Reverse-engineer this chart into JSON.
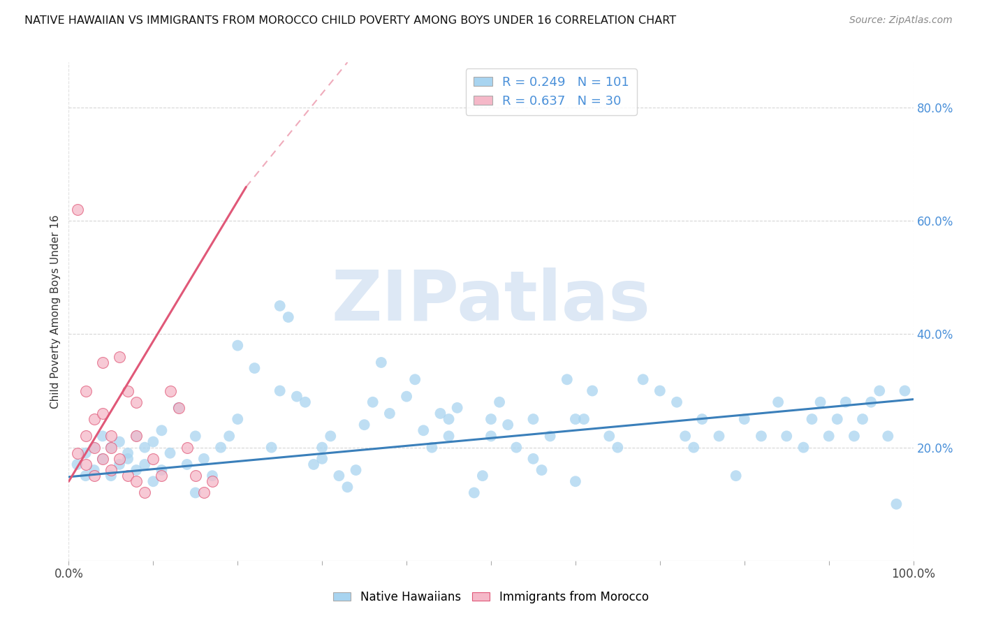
{
  "title": "NATIVE HAWAIIAN VS IMMIGRANTS FROM MOROCCO CHILD POVERTY AMONG BOYS UNDER 16 CORRELATION CHART",
  "source": "Source: ZipAtlas.com",
  "ylabel": "Child Poverty Among Boys Under 16",
  "xlim": [
    0.0,
    1.0
  ],
  "ylim": [
    0.0,
    0.88
  ],
  "blue_color": "#a8d4f0",
  "blue_line_color": "#3a7fba",
  "pink_color": "#f5b8c8",
  "pink_line_color": "#e05878",
  "watermark": "ZIPatlas",
  "background_color": "#ffffff",
  "grid_color": "#cccccc",
  "blue_R": 0.249,
  "pink_R": 0.637,
  "blue_N": 101,
  "pink_N": 30,
  "blue_line_x0": 0.0,
  "blue_line_y0": 0.148,
  "blue_line_x1": 1.0,
  "blue_line_y1": 0.285,
  "pink_line_x0": 0.0,
  "pink_line_y0": 0.14,
  "pink_line_x1": 0.21,
  "pink_line_y1": 0.66,
  "pink_line_dash_x0": 0.0,
  "pink_line_dash_y0": 0.14,
  "pink_line_dash_x1": 0.33,
  "pink_line_dash_y1": 0.88,
  "xtick_positions": [
    0.0,
    0.1,
    0.2,
    0.3,
    0.4,
    0.5,
    0.6,
    0.7,
    0.8,
    0.9,
    1.0
  ],
  "ytick_right": [
    0.2,
    0.4,
    0.6,
    0.8
  ],
  "ytick_right_labels": [
    "20.0%",
    "40.0%",
    "60.0%",
    "80.0%"
  ],
  "blue_scatter_x": [
    0.01,
    0.02,
    0.02,
    0.03,
    0.03,
    0.04,
    0.04,
    0.05,
    0.05,
    0.06,
    0.06,
    0.07,
    0.07,
    0.08,
    0.08,
    0.09,
    0.09,
    0.1,
    0.1,
    0.11,
    0.11,
    0.12,
    0.13,
    0.14,
    0.15,
    0.16,
    0.17,
    0.18,
    0.19,
    0.2,
    0.22,
    0.24,
    0.25,
    0.26,
    0.27,
    0.28,
    0.29,
    0.3,
    0.31,
    0.32,
    0.33,
    0.34,
    0.35,
    0.36,
    0.37,
    0.38,
    0.4,
    0.41,
    0.42,
    0.43,
    0.44,
    0.45,
    0.46,
    0.48,
    0.49,
    0.5,
    0.51,
    0.52,
    0.53,
    0.55,
    0.56,
    0.57,
    0.59,
    0.6,
    0.61,
    0.62,
    0.64,
    0.65,
    0.68,
    0.7,
    0.72,
    0.73,
    0.74,
    0.75,
    0.77,
    0.79,
    0.8,
    0.82,
    0.84,
    0.85,
    0.87,
    0.88,
    0.89,
    0.9,
    0.91,
    0.92,
    0.93,
    0.94,
    0.95,
    0.96,
    0.97,
    0.98,
    0.99,
    0.55,
    0.6,
    0.5,
    0.45,
    0.3,
    0.25,
    0.2,
    0.15
  ],
  "blue_scatter_y": [
    0.17,
    0.15,
    0.19,
    0.16,
    0.2,
    0.18,
    0.22,
    0.15,
    0.2,
    0.17,
    0.21,
    0.18,
    0.19,
    0.16,
    0.22,
    0.17,
    0.2,
    0.14,
    0.21,
    0.16,
    0.23,
    0.19,
    0.27,
    0.17,
    0.22,
    0.18,
    0.15,
    0.2,
    0.22,
    0.38,
    0.34,
    0.2,
    0.45,
    0.43,
    0.29,
    0.28,
    0.17,
    0.18,
    0.22,
    0.15,
    0.13,
    0.16,
    0.24,
    0.28,
    0.35,
    0.26,
    0.29,
    0.32,
    0.23,
    0.2,
    0.26,
    0.22,
    0.27,
    0.12,
    0.15,
    0.22,
    0.28,
    0.24,
    0.2,
    0.18,
    0.16,
    0.22,
    0.32,
    0.14,
    0.25,
    0.3,
    0.22,
    0.2,
    0.32,
    0.3,
    0.28,
    0.22,
    0.2,
    0.25,
    0.22,
    0.15,
    0.25,
    0.22,
    0.28,
    0.22,
    0.2,
    0.25,
    0.28,
    0.22,
    0.25,
    0.28,
    0.22,
    0.25,
    0.28,
    0.3,
    0.22,
    0.1,
    0.3,
    0.25,
    0.25,
    0.25,
    0.25,
    0.2,
    0.3,
    0.25,
    0.12
  ],
  "pink_scatter_x": [
    0.01,
    0.01,
    0.02,
    0.02,
    0.02,
    0.03,
    0.03,
    0.03,
    0.04,
    0.04,
    0.04,
    0.05,
    0.05,
    0.05,
    0.06,
    0.06,
    0.07,
    0.07,
    0.08,
    0.08,
    0.08,
    0.09,
    0.1,
    0.11,
    0.12,
    0.13,
    0.14,
    0.15,
    0.16,
    0.17
  ],
  "pink_scatter_y": [
    0.62,
    0.19,
    0.17,
    0.22,
    0.3,
    0.25,
    0.2,
    0.15,
    0.18,
    0.35,
    0.26,
    0.2,
    0.16,
    0.22,
    0.18,
    0.36,
    0.3,
    0.15,
    0.22,
    0.14,
    0.28,
    0.12,
    0.18,
    0.15,
    0.3,
    0.27,
    0.2,
    0.15,
    0.12,
    0.14
  ]
}
